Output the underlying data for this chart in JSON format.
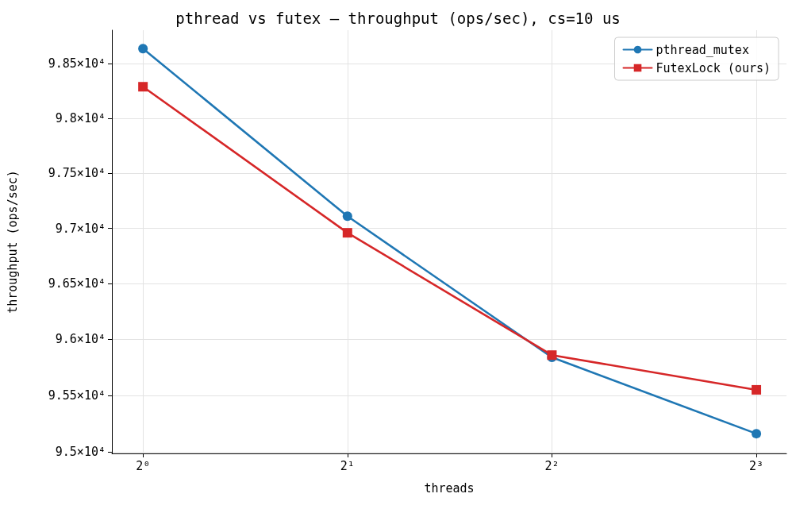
{
  "chart_data": {
    "type": "line",
    "title": "pthread vs futex — throughput (ops/sec), cs=10 us",
    "xlabel": "threads",
    "ylabel": "throughput (ops/sec)",
    "x": [
      1,
      2,
      4,
      8
    ],
    "series": [
      {
        "name": "pthread_mutex",
        "color": "#1f77b4",
        "marker": "circle",
        "values": [
          98640,
          97110,
          95840,
          95160
        ]
      },
      {
        "name": "FutexLock (ours)",
        "color": "#d62728",
        "marker": "square",
        "values": [
          98290,
          96960,
          95860,
          95550
        ]
      }
    ],
    "log": "xy",
    "xlim": [
      0.9,
      8.86
    ],
    "ylim": [
      94985,
      98810
    ],
    "xticks": [
      {
        "value": 1,
        "label": "2⁰"
      },
      {
        "value": 2,
        "label": "2¹"
      },
      {
        "value": 4,
        "label": "2²"
      },
      {
        "value": 8,
        "label": "2³"
      }
    ],
    "yticks": [
      {
        "value": 95000,
        "label": "9.5×10⁴"
      },
      {
        "value": 95500,
        "label": "9.55×10⁴"
      },
      {
        "value": 96000,
        "label": "9.6×10⁴"
      },
      {
        "value": 96500,
        "label": "9.65×10⁴"
      },
      {
        "value": 97000,
        "label": "9.7×10⁴"
      },
      {
        "value": 97500,
        "label": "9.75×10⁴"
      },
      {
        "value": 98000,
        "label": "9.8×10⁴"
      },
      {
        "value": 98500,
        "label": "9.85×10⁴"
      }
    ],
    "grid": true,
    "legend": "top right",
    "line_style": "solid"
  }
}
